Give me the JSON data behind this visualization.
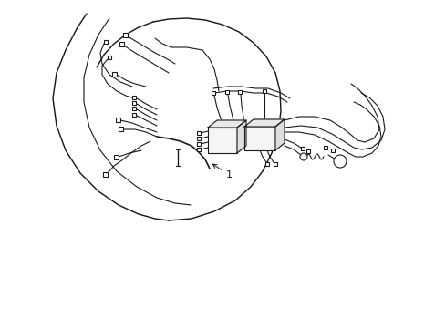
{
  "bg_color": "#ffffff",
  "line_color": "#1a1a1a",
  "line_width": 0.8,
  "fig_width": 4.89,
  "fig_height": 3.6,
  "dpi": 100,
  "xlim": [
    0,
    489
  ],
  "ylim": [
    0,
    360
  ]
}
